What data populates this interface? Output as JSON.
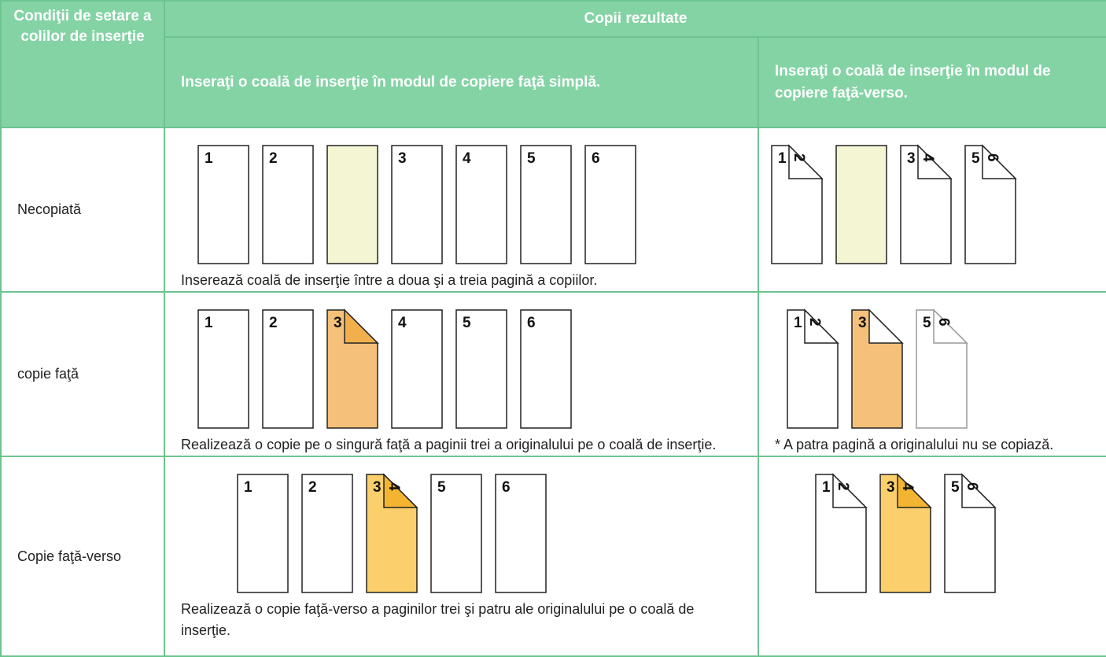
{
  "header": {
    "condition": "Condiţii de setare a colilor de inserţie",
    "group": "Copii rezultate",
    "simplex": "Inseraţi o coală de inserţie în modul de copiere faţă simplă.",
    "duplex": "Inseraţi o coală de inserţie în modul de copiere faţă-verso."
  },
  "rows": [
    {
      "condition": "Necopiată",
      "simplex": {
        "pages": [
          {
            "front": "1"
          },
          {
            "front": "2"
          },
          {
            "color": "#f4f5d2"
          },
          {
            "front": "3"
          },
          {
            "front": "4"
          },
          {
            "front": "5"
          },
          {
            "front": "6"
          }
        ],
        "note": "Inserează coală de inserţie între a doua şi a treia pagină a copiilor."
      },
      "duplex": {
        "pages": [
          {
            "front": "1",
            "back": "2",
            "folded": true
          },
          {
            "color": "#f4f5d2"
          },
          {
            "front": "3",
            "back": "4",
            "folded": true
          },
          {
            "front": "5",
            "back": "6",
            "folded": true
          }
        ]
      }
    },
    {
      "condition": "copie faţă",
      "simplex": {
        "pages": [
          {
            "front": "1"
          },
          {
            "front": "2"
          },
          {
            "front": "3",
            "folded": true,
            "color": "#f5c07a",
            "fold_color": "#f2b04c"
          },
          {
            "front": "4"
          },
          {
            "front": "5"
          },
          {
            "front": "6"
          }
        ],
        "note": "Realizează o copie pe o singură faţă a paginii trei a originalului pe o coală de inserţie."
      },
      "duplex": {
        "pages": [
          {
            "front": "1",
            "back": "2",
            "folded": true
          },
          {
            "front": "3",
            "folded": true,
            "color": "#f5c07a",
            "fold_color": "#ffffff"
          },
          {
            "front": "5",
            "back": "6",
            "folded": true,
            "stroke": "#999999"
          }
        ],
        "note": "* A patra pagină a originalului nu se copiază."
      }
    },
    {
      "condition": "Copie faţă-verso",
      "simplex": {
        "pages": [
          {
            "front": "1"
          },
          {
            "front": "2"
          },
          {
            "front": "3",
            "back": "4",
            "folded": true,
            "color": "#fbcf6b",
            "fold_color": "#f3b531"
          },
          {
            "front": "5"
          },
          {
            "front": "6"
          }
        ],
        "note": "Realizează o copie faţă-verso a paginilor trei şi patru ale originalului pe o coală de inserţie."
      },
      "duplex": {
        "pages": [
          {
            "front": "1",
            "back": "2",
            "folded": true
          },
          {
            "front": "3",
            "back": "4",
            "folded": true,
            "color": "#fbcf6b",
            "fold_color": "#f3b531"
          },
          {
            "front": "5",
            "back": "6",
            "folded": true
          }
        ]
      }
    }
  ]
}
